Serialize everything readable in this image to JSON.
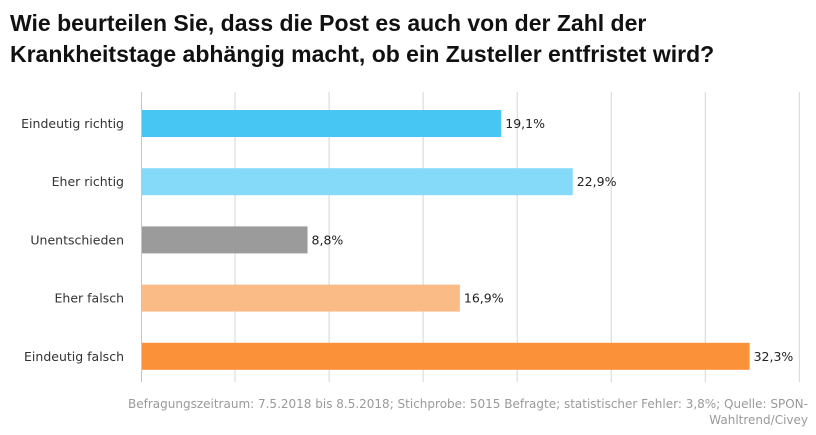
{
  "title_line1": "Wie beurteilen Sie, dass die Post es auch von der Zahl der",
  "title_line2": "Krankheitstage abhängig macht, ob ein Zusteller entfristet wird?",
  "chart_data": {
    "type": "bar",
    "orientation": "horizontal",
    "categories": [
      "Eindeutig richtig",
      "Eher richtig",
      "Unentschieden",
      "Eher falsch",
      "Eindeutig falsch"
    ],
    "values": [
      19.1,
      22.9,
      8.8,
      16.9,
      32.3
    ],
    "value_labels": [
      "19,1%",
      "22,9%",
      "8,8%",
      "16,9%",
      "32,3%"
    ],
    "colors": [
      "#47c6f4",
      "#85daf9",
      "#9b9b9b",
      "#fbbb86",
      "#fb9139"
    ],
    "xlim": [
      0,
      35
    ],
    "grid": true
  },
  "footnote": "Befragungszeitraum: 7.5.2018 bis 8.5.2018; Stichprobe: 5015 Befragte; statistischer Fehler: 3,8%; Quelle: SPON-Wahltrend/Civey"
}
